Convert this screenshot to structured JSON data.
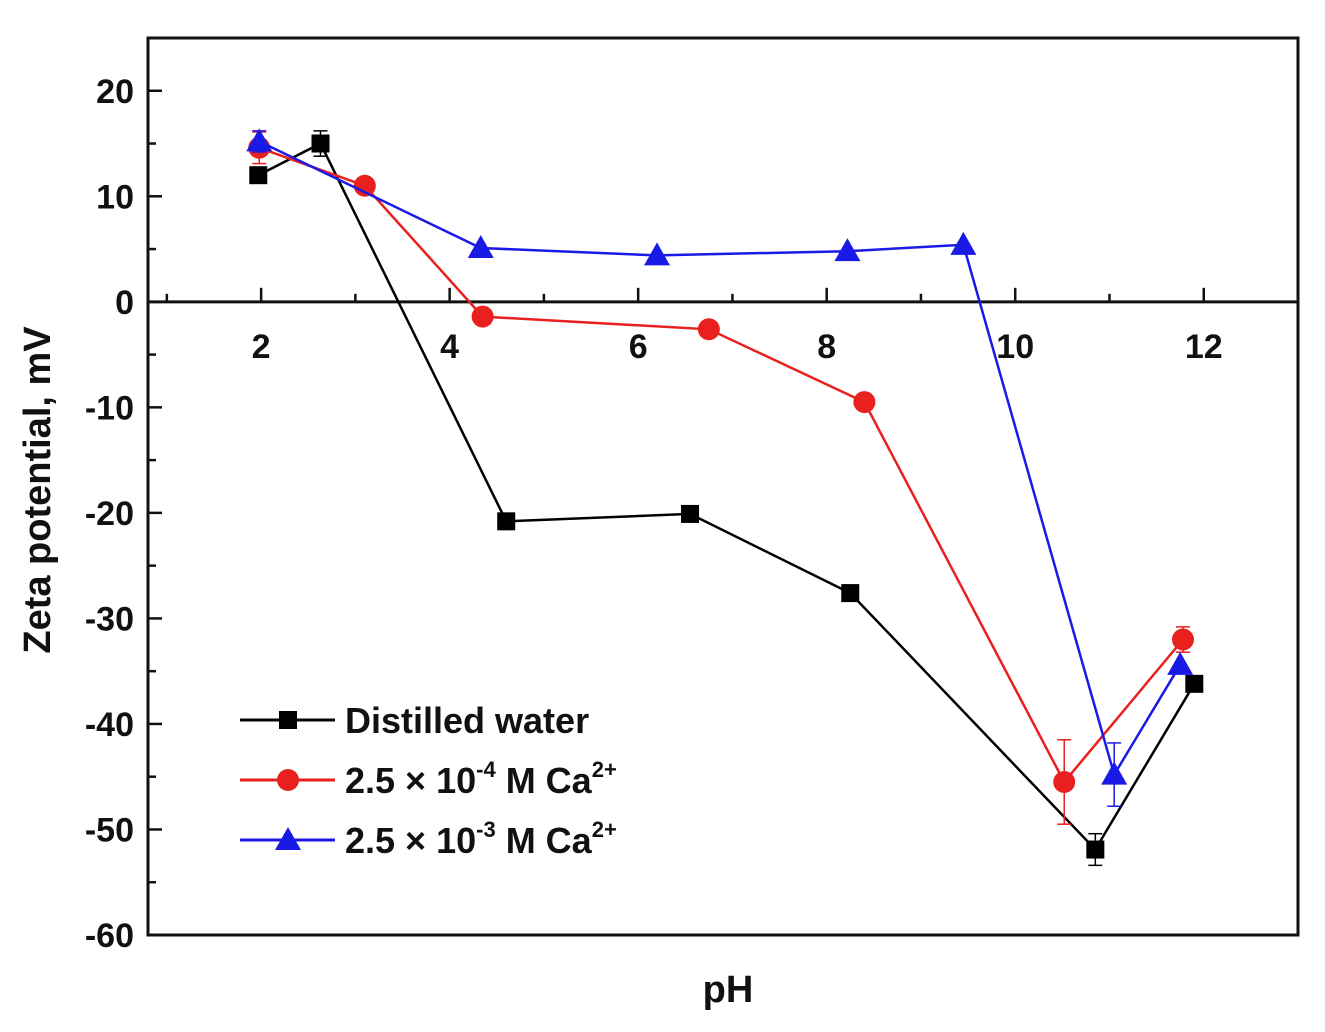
{
  "chart_data": {
    "type": "line",
    "xlabel": "pH",
    "ylabel": "Zeta potential, mV",
    "xlim": [
      0.8,
      13.0
    ],
    "ylim": [
      -60,
      25
    ],
    "xticks": [
      2,
      4,
      6,
      8,
      10,
      12
    ],
    "yticks": [
      -60,
      -50,
      -40,
      -30,
      -20,
      -10,
      0,
      10,
      20
    ],
    "xtick_labels": [
      "2",
      "4",
      "6",
      "8",
      "10",
      "12"
    ],
    "ytick_labels": [
      "-60",
      "-50",
      "-40",
      "-30",
      "-20",
      "-10",
      "0",
      "10",
      "20"
    ],
    "legend_position": "bottom-left",
    "series": [
      {
        "name": "Distilled water",
        "legend_main": "Distilled water",
        "legend_sup": "",
        "legend_tail": "",
        "color": "#000000",
        "marker": "square",
        "x": [
          1.97,
          2.63,
          4.6,
          6.55,
          8.25,
          10.85,
          11.9
        ],
        "y": [
          12.0,
          15.0,
          -20.8,
          -20.1,
          -27.6,
          -51.9,
          -36.2
        ],
        "error": [
          0,
          1.2,
          0,
          0,
          0,
          1.5,
          0
        ]
      },
      {
        "name": "2.5 × 10-4 M Ca2+",
        "legend_main": "2.5 × 10",
        "legend_sup": "-4",
        "legend_mid": " M Ca",
        "legend_sup2": "2+",
        "color": "#e8201e",
        "marker": "circle",
        "x": [
          1.98,
          3.1,
          4.35,
          6.75,
          8.4,
          10.52,
          11.78
        ],
        "y": [
          14.6,
          11.0,
          -1.4,
          -2.6,
          -9.5,
          -45.5,
          -32.0
        ],
        "error": [
          1.5,
          0,
          0,
          0,
          0,
          4.0,
          1.2
        ]
      },
      {
        "name": "2.5 × 10-3 M Ca2+",
        "legend_main": "2.5 × 10",
        "legend_sup": "-3",
        "legend_mid": " M Ca",
        "legend_sup2": "2+",
        "color": "#1a1ae6",
        "marker": "triangle",
        "x": [
          1.98,
          4.33,
          6.2,
          8.22,
          9.45,
          11.05,
          11.75
        ],
        "y": [
          15.2,
          5.1,
          4.4,
          4.8,
          5.4,
          -44.8,
          -34.4
        ],
        "error": [
          1.0,
          0,
          0,
          0,
          0,
          3.0,
          0
        ]
      }
    ]
  }
}
